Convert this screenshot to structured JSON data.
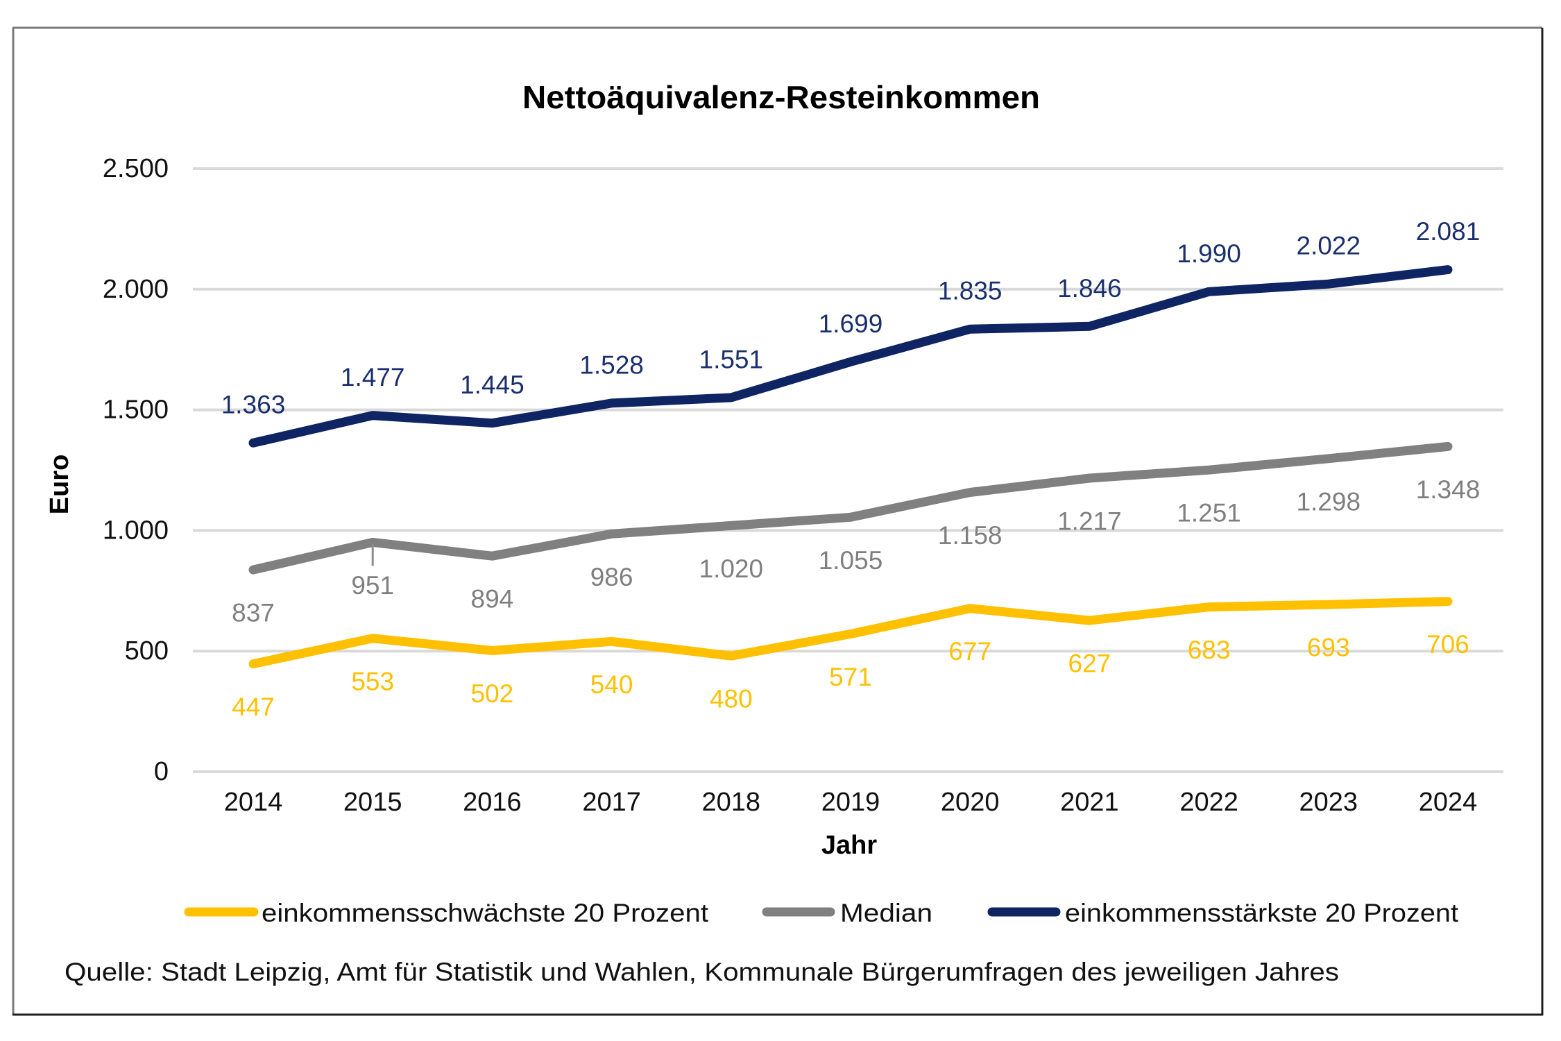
{
  "chart_data": {
    "type": "line",
    "title": "Nettoäquivalenz-Resteinkommen",
    "xlabel": "Jahr",
    "ylabel": "Euro",
    "ylim": [
      0,
      2500
    ],
    "y_ticks": [
      0,
      500,
      1000,
      1500,
      2000,
      2500
    ],
    "y_tick_labels": [
      "0",
      "500",
      "1.000",
      "1.500",
      "2.000",
      "2.500"
    ],
    "grid": true,
    "legend_position": "bottom",
    "categories": [
      "2014",
      "2015",
      "2016",
      "2017",
      "2018",
      "2019",
      "2020",
      "2021",
      "2022",
      "2023",
      "2024"
    ],
    "series": [
      {
        "name": "einkommensschwächste 20 Prozent",
        "color": "#ffc000",
        "label_color": "#ffc000",
        "values": [
          447,
          553,
          502,
          540,
          480,
          571,
          677,
          627,
          683,
          693,
          706
        ],
        "labels": [
          "447",
          "553",
          "502",
          "540",
          "480",
          "571",
          "677",
          "627",
          "683",
          "693",
          "706"
        ],
        "label_position": "below"
      },
      {
        "name": "Median",
        "color": "#808080",
        "label_color": "#7f7f7f",
        "values": [
          837,
          951,
          894,
          986,
          1020,
          1055,
          1158,
          1217,
          1251,
          1298,
          1348
        ],
        "labels": [
          "837",
          "951",
          "894",
          "986",
          "1.020",
          "1.055",
          "1.158",
          "1.217",
          "1.251",
          "1.298",
          "1.348"
        ],
        "label_position": "below"
      },
      {
        "name": "einkommensstärkste 20 Prozent",
        "color": "#0f2462",
        "label_color": "#1a2f6e",
        "values": [
          1363,
          1477,
          1445,
          1528,
          1551,
          1699,
          1835,
          1846,
          1990,
          2022,
          2081
        ],
        "labels": [
          "1.363",
          "1.477",
          "1.445",
          "1.528",
          "1.551",
          "1.699",
          "1.835",
          "1.846",
          "1.990",
          "2.022",
          "2.081"
        ],
        "label_position": "above"
      }
    ],
    "source": "Quelle:  Stadt  Leipzig,  Amt für Statistik  und Wahlen,  Kommunale  Bürgerumfragen des jeweiligen  Jahres"
  }
}
